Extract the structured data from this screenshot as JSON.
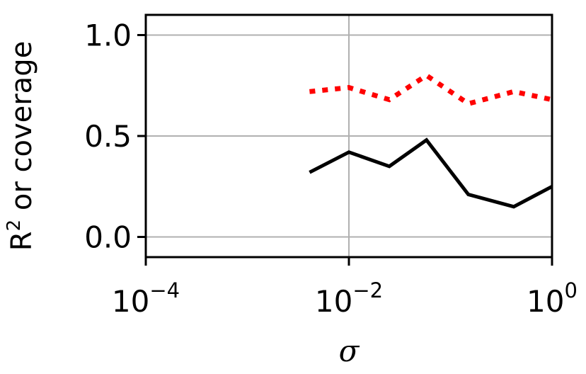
{
  "chart_data": {
    "type": "line",
    "x_scale": "log",
    "xlim": [
      0.0001,
      1
    ],
    "ylim": [
      -0.1,
      1.1
    ],
    "xlabel": "σ",
    "ylabel_main": "R",
    "ylabel_sup": "2",
    "ylabel_rest": " or coverage",
    "x_ticks": [
      {
        "base": "10",
        "exp": "−4",
        "value": 0.0001
      },
      {
        "base": "10",
        "exp": "−2",
        "value": 0.01
      },
      {
        "base": "10",
        "exp": "0",
        "value": 1
      }
    ],
    "y_ticks": [
      {
        "label": "0.0",
        "value": 0.0
      },
      {
        "label": "0.5",
        "value": 0.5
      },
      {
        "label": "1.0",
        "value": 1.0
      }
    ],
    "grid": true,
    "series": [
      {
        "style": "solid",
        "color": "#000000",
        "x": [
          0.0041,
          0.01,
          0.025,
          0.058,
          0.15,
          0.42,
          1.0
        ],
        "y": [
          0.32,
          0.42,
          0.35,
          0.48,
          0.21,
          0.15,
          0.25
        ]
      },
      {
        "style": "dotted",
        "color": "#ff0000",
        "x": [
          0.0041,
          0.01,
          0.025,
          0.058,
          0.15,
          0.42,
          1.0
        ],
        "y": [
          0.72,
          0.74,
          0.68,
          0.8,
          0.66,
          0.72,
          0.68
        ]
      }
    ]
  }
}
